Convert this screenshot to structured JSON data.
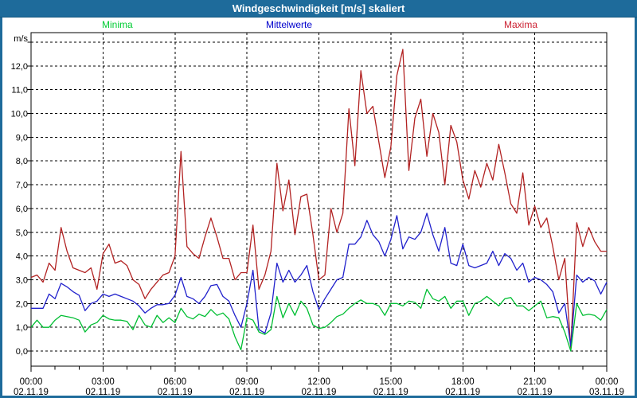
{
  "window": {
    "title": "Windgeschwindigkeit [m/s] skaliert"
  },
  "colors": {
    "chrome_blue": "#1E6B9B",
    "background": "#FFFFFF",
    "plot_border": "#000000",
    "grid": "#000000",
    "text": "#000000",
    "minima": "#00BE32",
    "mittelwerte": "#2121CC",
    "maxima": "#B22222",
    "legend_minima": "#00CC33",
    "legend_mittelwerte": "#0000CC",
    "legend_maxima": "#CC2233"
  },
  "chart_data": {
    "type": "line",
    "title": "Windgeschwindigkeit [m/s] skaliert",
    "ylabel": "m/s",
    "xlabel": "",
    "grid": "dashed",
    "legend_position": "top",
    "y_axis": {
      "min": 0.0,
      "max": 13.0,
      "tick_step": 1.0,
      "tick_labels": [
        "0,0",
        "1,0",
        "2,0",
        "3,0",
        "4,0",
        "5,0",
        "6,0",
        "7,0",
        "8,0",
        "9,0",
        "10,0",
        "11,0",
        "12,0"
      ],
      "top_gridline_unlabeled": 13.0
    },
    "x_axis": {
      "span_hours": 24,
      "major_tick_hours": 3,
      "minor_tick_hours": 1,
      "major_ticks": [
        {
          "hour": 0,
          "time": "00:00",
          "date": "02.11.19"
        },
        {
          "hour": 3,
          "time": "03:00",
          "date": "02.11.19"
        },
        {
          "hour": 6,
          "time": "06:00",
          "date": "02.11.19"
        },
        {
          "hour": 9,
          "time": "09:00",
          "date": "02.11.19"
        },
        {
          "hour": 12,
          "time": "12:00",
          "date": "02.11.19"
        },
        {
          "hour": 15,
          "time": "15:00",
          "date": "02.11.19"
        },
        {
          "hour": 18,
          "time": "18:00",
          "date": "02.11.19"
        },
        {
          "hour": 21,
          "time": "21:00",
          "date": "02.11.19"
        },
        {
          "hour": 24,
          "time": "00:00",
          "date": "03.11.19"
        }
      ]
    },
    "sample_interval_hours": 0.25,
    "series": [
      {
        "name": "Minima",
        "color_key": "minima",
        "legend_color_key": "legend_minima",
        "values": [
          1.0,
          1.3,
          1.0,
          1.0,
          1.3,
          1.5,
          1.45,
          1.4,
          1.3,
          0.8,
          1.1,
          1.2,
          1.5,
          1.35,
          1.3,
          1.3,
          1.25,
          0.9,
          1.5,
          1.1,
          1.0,
          1.5,
          1.2,
          1.4,
          1.2,
          1.8,
          1.45,
          1.35,
          1.55,
          1.45,
          1.75,
          1.5,
          1.6,
          1.35,
          0.6,
          0.05,
          1.4,
          1.3,
          0.8,
          0.7,
          0.9,
          2.3,
          1.4,
          2.0,
          1.5,
          2.1,
          1.8,
          1.1,
          0.95,
          1.0,
          1.2,
          1.45,
          1.55,
          1.8,
          2.0,
          2.15,
          2.0,
          2.0,
          1.9,
          1.5,
          2.0,
          2.0,
          1.9,
          2.1,
          2.05,
          1.8,
          2.6,
          2.2,
          2.1,
          2.3,
          1.8,
          2.1,
          2.1,
          1.5,
          2.0,
          2.1,
          2.3,
          2.1,
          1.9,
          2.2,
          2.25,
          1.9,
          1.9,
          1.7,
          1.9,
          2.1,
          1.4,
          1.45,
          1.4,
          0.8,
          0.0,
          2.0,
          1.5,
          1.55,
          1.5,
          1.3,
          1.75
        ]
      },
      {
        "name": "Mittelwerte",
        "color_key": "mittelwerte",
        "legend_color_key": "legend_mittelwerte",
        "values": [
          1.8,
          1.8,
          1.8,
          2.4,
          2.2,
          2.85,
          2.7,
          2.5,
          2.35,
          1.7,
          2.0,
          2.1,
          2.4,
          2.3,
          2.4,
          2.3,
          2.2,
          2.1,
          1.9,
          1.6,
          1.8,
          1.95,
          1.95,
          2.0,
          2.35,
          3.1,
          2.3,
          2.2,
          2.0,
          2.3,
          2.75,
          2.8,
          2.3,
          2.1,
          1.5,
          1.0,
          2.0,
          3.4,
          0.9,
          0.75,
          1.6,
          3.7,
          2.9,
          3.4,
          2.9,
          3.2,
          3.6,
          2.5,
          1.75,
          2.2,
          2.6,
          3.0,
          3.1,
          4.5,
          4.5,
          4.8,
          5.5,
          4.9,
          4.6,
          4.0,
          4.7,
          5.7,
          4.3,
          4.8,
          4.7,
          5.0,
          5.8,
          4.9,
          4.2,
          5.2,
          3.7,
          3.6,
          4.5,
          3.6,
          3.5,
          3.6,
          3.7,
          4.2,
          3.6,
          4.1,
          3.9,
          3.4,
          3.7,
          2.9,
          3.1,
          3.0,
          2.8,
          2.5,
          1.6,
          2.0,
          0.2,
          3.2,
          2.9,
          3.1,
          2.95,
          2.4,
          2.9
        ]
      },
      {
        "name": "Maxima",
        "color_key": "maxima",
        "legend_color_key": "legend_maxima",
        "values": [
          3.1,
          3.2,
          2.9,
          3.7,
          3.4,
          5.2,
          4.2,
          3.5,
          3.4,
          3.3,
          3.5,
          2.6,
          4.1,
          4.5,
          3.7,
          3.8,
          3.6,
          3.0,
          2.8,
          2.2,
          2.6,
          2.9,
          3.2,
          3.3,
          4.0,
          8.4,
          4.4,
          4.1,
          3.9,
          4.8,
          5.6,
          4.8,
          3.9,
          3.9,
          3.0,
          3.3,
          3.3,
          5.3,
          2.6,
          3.2,
          4.2,
          7.9,
          5.9,
          7.2,
          4.9,
          6.5,
          6.6,
          4.9,
          3.0,
          3.2,
          6.0,
          5.0,
          5.8,
          10.2,
          7.8,
          11.8,
          10.0,
          10.3,
          8.8,
          7.3,
          8.6,
          11.6,
          12.7,
          7.6,
          9.8,
          10.6,
          8.2,
          10.0,
          9.2,
          7.0,
          9.5,
          8.8,
          7.2,
          6.4,
          7.6,
          6.9,
          7.9,
          7.2,
          8.7,
          7.5,
          6.2,
          5.8,
          7.5,
          5.3,
          6.1,
          5.2,
          5.6,
          4.4,
          3.0,
          3.9,
          0.1,
          5.4,
          4.4,
          5.2,
          4.6,
          4.2,
          4.2
        ]
      }
    ]
  }
}
